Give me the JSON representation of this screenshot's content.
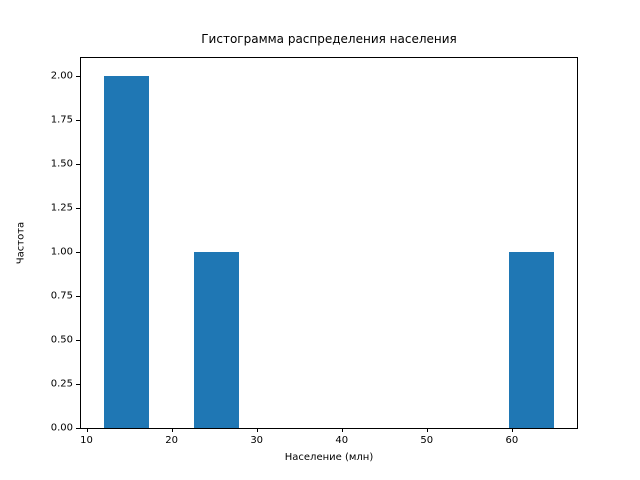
{
  "figure": {
    "background_color": "#ffffff",
    "spine_color": "#000000",
    "text_color": "#000000"
  },
  "chart_data": {
    "type": "bar",
    "subtype": "histogram",
    "title": "Гистограмма распределения населения",
    "xlabel": "Население (млн)",
    "ylabel": "Частота",
    "bar_color": "#1f77b4",
    "bars": [
      {
        "x0": 12.0,
        "x1": 17.3,
        "count": 2
      },
      {
        "x0": 22.6,
        "x1": 27.9,
        "count": 1
      },
      {
        "x0": 59.7,
        "x1": 65.0,
        "count": 1
      }
    ],
    "x_ticks": [
      "10",
      "20",
      "30",
      "40",
      "50",
      "60"
    ],
    "y_ticks": [
      "0.00",
      "0.25",
      "0.50",
      "0.75",
      "1.00",
      "1.25",
      "1.50",
      "1.75",
      "2.00"
    ],
    "xlim": [
      9.35,
      67.65
    ],
    "ylim": [
      0,
      2.1
    ],
    "grid": false,
    "legend": null
  }
}
